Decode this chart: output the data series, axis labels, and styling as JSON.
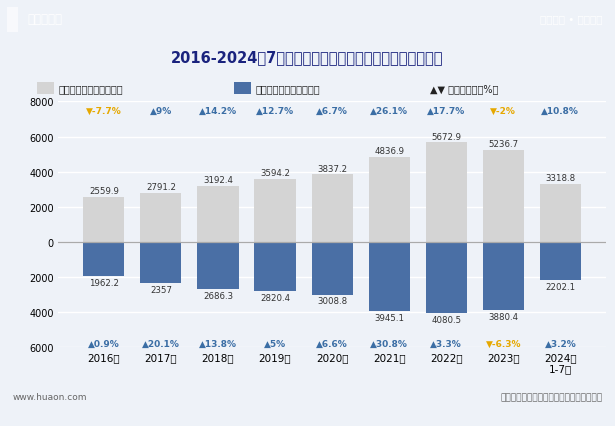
{
  "title": "2016-2024年7月中国与东南亚国家联盟进、出口商品总值",
  "years": [
    "2016年",
    "2017年",
    "2018年",
    "2019年",
    "2020年",
    "2021年",
    "2022年",
    "2023年",
    "2024年\n1-7月"
  ],
  "export_values": [
    2559.9,
    2791.2,
    3192.4,
    3594.2,
    3837.2,
    4836.9,
    5672.9,
    5236.7,
    3318.8
  ],
  "import_values": [
    -1962.2,
    -2357.0,
    -2686.3,
    -2820.4,
    -3008.8,
    -3945.1,
    -4080.5,
    -3880.4,
    -2202.1
  ],
  "import_labels": [
    "1962.2",
    "2357",
    "2686.3",
    "2820.4",
    "3008.8",
    "3945.1",
    "4080.5",
    "3880.4",
    "2202.1"
  ],
  "export_growth": [
    "▼-7.7%",
    "▲9%",
    "▲14.2%",
    "▲12.7%",
    "▲6.7%",
    "▲26.1%",
    "▲17.7%",
    "▼-2%",
    "▲10.8%"
  ],
  "import_growth": [
    "▲0.9%",
    "▲20.1%",
    "▲13.8%",
    "▲5%",
    "▲6.6%",
    "▲30.8%",
    "▲3.3%",
    "▼-6.3%",
    "▲3.2%"
  ],
  "export_growth_colors": [
    "#e6a800",
    "#3b6ea5",
    "#3b6ea5",
    "#3b6ea5",
    "#3b6ea5",
    "#3b6ea5",
    "#3b6ea5",
    "#e6a800",
    "#3b6ea5"
  ],
  "import_growth_colors": [
    "#3b6ea5",
    "#3b6ea5",
    "#3b6ea5",
    "#3b6ea5",
    "#3b6ea5",
    "#3b6ea5",
    "#3b6ea5",
    "#e6a800",
    "#3b6ea5"
  ],
  "bar_color_export": "#d4d4d4",
  "bar_color_import": "#4a6fa5",
  "header_bg": "#3a5fa0",
  "bg_color": "#eef2f8",
  "title_bg": "#dce6f5",
  "legend_export": "出口商品总值（亿美元）",
  "legend_import": "进口商品总值（亿美元）",
  "legend_growth": "▲▼ 同比增长率（%）",
  "source_text": "资料来源：中国海关，华经产业研究院整理",
  "website_left": "www.huaon.com",
  "header_left": "华经情报网",
  "header_right": "专业严谨 • 客观科学",
  "ylim": [
    -6000,
    8000
  ],
  "yticks": [
    -6000,
    -4000,
    -2000,
    0,
    2000,
    4000,
    6000,
    8000
  ]
}
